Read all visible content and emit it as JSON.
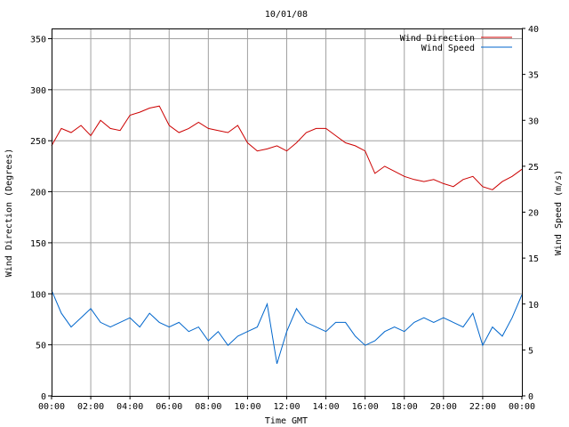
{
  "chart_data": {
    "type": "line",
    "title": "10/01/08",
    "xlabel": "Time GMT",
    "ylabel_left": "Wind Direction (Degrees)",
    "ylabel_right": "Wind Speed (m/s)",
    "x_ticks": [
      "00:00",
      "02:00",
      "04:00",
      "06:00",
      "08:00",
      "10:00",
      "12:00",
      "14:00",
      "16:00",
      "18:00",
      "20:00",
      "22:00",
      "00:00"
    ],
    "x_range_hours": [
      0,
      24
    ],
    "y_left_ticks": [
      "0",
      "50",
      "100",
      "150",
      "200",
      "250",
      "300",
      "350"
    ],
    "y_left_range": [
      0,
      360
    ],
    "y_right_ticks": [
      "0",
      "5",
      "10",
      "15",
      "20",
      "25",
      "30",
      "35",
      "40"
    ],
    "y_right_range": [
      0,
      40
    ],
    "grid": true,
    "legend_position": "top-right",
    "series": [
      {
        "name": "Wind Direction",
        "axis": "left",
        "color": "#cc0000",
        "x_hours": [
          0,
          0.5,
          1,
          1.5,
          2,
          2.5,
          3,
          3.5,
          4,
          4.5,
          5,
          5.5,
          6,
          6.5,
          7,
          7.5,
          8,
          8.5,
          9,
          9.5,
          10,
          10.5,
          11,
          11.5,
          12,
          12.5,
          13,
          13.5,
          14,
          14.5,
          15,
          15.5,
          16,
          16.5,
          17,
          17.5,
          18,
          18.5,
          19,
          19.5,
          20,
          20.5,
          21,
          21.5,
          22,
          22.5,
          23,
          23.5,
          24
        ],
        "values": [
          245,
          262,
          258,
          265,
          255,
          270,
          262,
          260,
          275,
          278,
          282,
          284,
          265,
          258,
          262,
          268,
          262,
          260,
          258,
          265,
          248,
          240,
          242,
          245,
          240,
          248,
          258,
          262,
          262,
          255,
          248,
          245,
          240,
          218,
          225,
          220,
          215,
          212,
          210,
          212,
          208,
          205,
          212,
          215,
          205,
          202,
          210,
          215,
          222
        ]
      },
      {
        "name": "Wind Speed",
        "axis": "right",
        "color": "#0066cc",
        "x_hours": [
          0,
          0.5,
          1,
          1.5,
          2,
          2.5,
          3,
          3.5,
          4,
          4.5,
          5,
          5.5,
          6,
          6.5,
          7,
          7.5,
          8,
          8.5,
          9,
          9.5,
          10,
          10.5,
          11,
          11.5,
          12,
          12.5,
          13,
          13.5,
          14,
          14.5,
          15,
          15.5,
          16,
          16.5,
          17,
          17.5,
          18,
          18.5,
          19,
          19.5,
          20,
          20.5,
          21,
          21.5,
          22,
          22.5,
          23,
          23.5,
          24
        ],
        "values": [
          11.5,
          9,
          7.5,
          8.5,
          9.5,
          8,
          7.5,
          8,
          8.5,
          7.5,
          9,
          8,
          7.5,
          8,
          7,
          7.5,
          6,
          7,
          5.5,
          6.5,
          7,
          7.5,
          10,
          3.5,
          7,
          9.5,
          8,
          7.5,
          7,
          8,
          8,
          6.5,
          5.5,
          6,
          7,
          7.5,
          7,
          8,
          8.5,
          8,
          8.5,
          8,
          7.5,
          9,
          5.5,
          7.5,
          6.5,
          8.5,
          11
        ]
      }
    ]
  }
}
